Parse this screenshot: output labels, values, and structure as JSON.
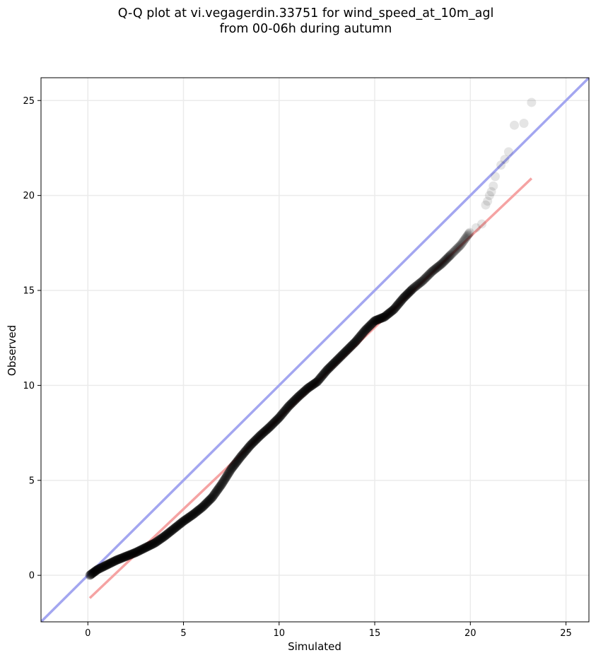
{
  "chart_data": {
    "type": "scatter",
    "title_line1": "Q-Q plot at vi.vegagerdin.33751 for wind_speed_at_10m_agl",
    "title_line2": "from 00-06h during autumn",
    "xlabel": "Simulated",
    "ylabel": "Observed",
    "xlim": [
      -2.45,
      26.2
    ],
    "ylim": [
      -2.45,
      26.2
    ],
    "xticks": [
      0,
      5,
      10,
      15,
      20,
      25
    ],
    "yticks": [
      0,
      5,
      10,
      15,
      20,
      25
    ],
    "grid": true,
    "quantile_curve": [
      [
        0.1,
        0.0
      ],
      [
        0.5,
        0.3
      ],
      [
        1.0,
        0.55
      ],
      [
        1.5,
        0.8
      ],
      [
        2.0,
        1.0
      ],
      [
        2.5,
        1.2
      ],
      [
        3.0,
        1.45
      ],
      [
        3.5,
        1.7
      ],
      [
        4.0,
        2.05
      ],
      [
        4.5,
        2.45
      ],
      [
        5.0,
        2.85
      ],
      [
        5.5,
        3.2
      ],
      [
        6.0,
        3.6
      ],
      [
        6.5,
        4.1
      ],
      [
        7.0,
        4.8
      ],
      [
        7.5,
        5.6
      ],
      [
        8.0,
        6.25
      ],
      [
        8.5,
        6.85
      ],
      [
        9.0,
        7.35
      ],
      [
        9.5,
        7.8
      ],
      [
        10.0,
        8.3
      ],
      [
        10.5,
        8.9
      ],
      [
        11.0,
        9.4
      ],
      [
        11.5,
        9.85
      ],
      [
        12.0,
        10.2
      ],
      [
        12.5,
        10.8
      ],
      [
        13.0,
        11.3
      ],
      [
        13.5,
        11.8
      ],
      [
        14.0,
        12.3
      ],
      [
        14.5,
        12.9
      ],
      [
        15.0,
        13.4
      ],
      [
        15.5,
        13.6
      ],
      [
        16.0,
        14.0
      ],
      [
        16.5,
        14.6
      ],
      [
        17.0,
        15.1
      ],
      [
        17.5,
        15.5
      ],
      [
        18.0,
        16.0
      ],
      [
        18.5,
        16.4
      ],
      [
        19.0,
        16.9
      ],
      [
        19.5,
        17.4
      ],
      [
        20.0,
        18.1
      ]
    ],
    "tail_points": [
      [
        20.3,
        18.3
      ],
      [
        20.6,
        18.5
      ],
      [
        20.8,
        19.5
      ],
      [
        20.9,
        19.7
      ],
      [
        21.0,
        20.0
      ],
      [
        21.1,
        20.2
      ],
      [
        21.2,
        20.5
      ],
      [
        21.3,
        21.0
      ],
      [
        21.6,
        21.6
      ],
      [
        21.8,
        21.9
      ],
      [
        22.0,
        22.3
      ],
      [
        22.3,
        23.7
      ],
      [
        22.8,
        23.8
      ],
      [
        23.2,
        24.9
      ]
    ],
    "series": [
      {
        "type": "identity-line",
        "color": "#a3a6f0"
      },
      {
        "type": "fit-line",
        "color": "#f5a3a3",
        "x": [
          0.1,
          23.2
        ],
        "y": [
          -1.2,
          20.9
        ]
      }
    ],
    "colors": {
      "points": "#000000",
      "identity": "#a3a6f0",
      "fit": "#f5a3a3",
      "grid": "#ebebeb"
    }
  }
}
